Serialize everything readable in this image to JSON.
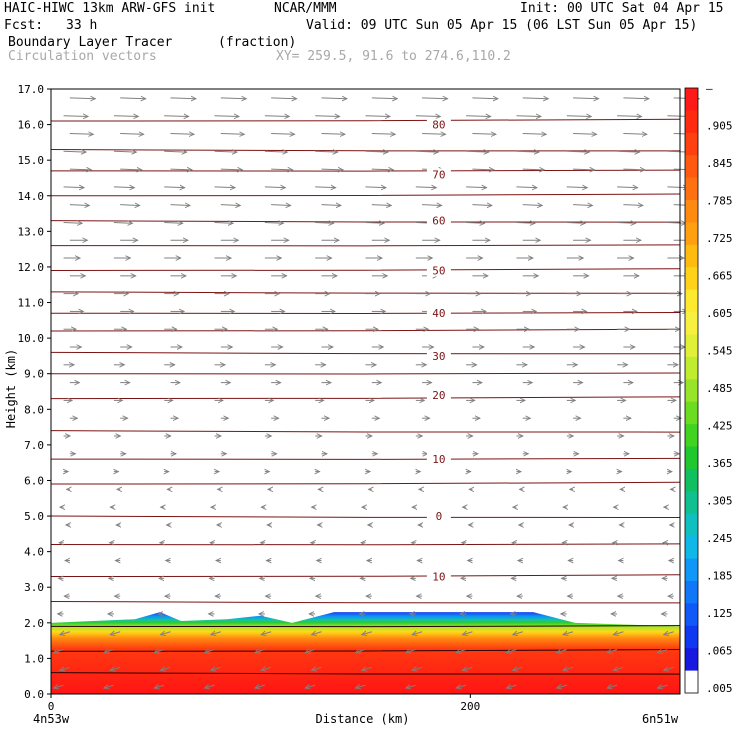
{
  "header": {
    "model": "HAIC-HIWC 13km ARW-GFS init",
    "org": "NCAR/MMM",
    "init": "Init: 00 UTC Sat 04 Apr 15",
    "fcst_label": "Fcst:",
    "fcst_value": "33 h",
    "valid": "Valid: 09 UTC Sun 05 Apr 15 (06 LST Sun 05 Apr 15)",
    "field": "Boundary Layer Tracer",
    "units": "(fraction)",
    "vectors": "Circulation vectors",
    "xy": "XY= 259.5, 91.6 to 274.6,110.2"
  },
  "chart_data": {
    "type": "heatmap",
    "xlabel": "Distance (km)",
    "ylabel": "Height (km)",
    "xlim": [
      0,
      300
    ],
    "ylim": [
      0,
      17
    ],
    "xticks": [
      0,
      200
    ],
    "yticks": [
      "0.0",
      "1.0",
      "2.0",
      "3.0",
      "4.0",
      "5.0",
      "6.0",
      "7.0",
      "8.0",
      "9.0",
      "10.0",
      "11.0",
      "12.0",
      "13.0",
      "14.0",
      "15.0",
      "16.0",
      "17.0"
    ],
    "x_end_labels": [
      "4n53w",
      "6n51w"
    ],
    "colorbar": {
      "labels": [
        "–",
        ".905",
        ".845",
        ".785",
        ".725",
        ".665",
        ".605",
        ".545",
        ".485",
        ".425",
        ".365",
        ".305",
        ".245",
        ".185",
        ".125",
        ".065",
        ".005"
      ],
      "colors": [
        "#ff1a1a",
        "#ff2a10",
        "#ff4010",
        "#ff5a10",
        "#ff7010",
        "#ff8a10",
        "#ffa010",
        "#ffbb10",
        "#ffd21a",
        "#ffe830",
        "#f8f040",
        "#e0f038",
        "#c0ec30",
        "#98e428",
        "#6cdc20",
        "#40d420",
        "#20c830",
        "#10c060",
        "#10c090",
        "#10c0c0",
        "#10b8e8",
        "#1098f8",
        "#1078f8",
        "#1058f8",
        "#1038f0",
        "#1818e0",
        "#ffffff"
      ]
    },
    "contour_labels": [
      {
        "label": "80",
        "x": 185,
        "y": 16.0
      },
      {
        "label": "70",
        "x": 185,
        "y": 14.6
      },
      {
        "label": "60",
        "x": 185,
        "y": 13.3
      },
      {
        "label": "50",
        "x": 185,
        "y": 11.9
      },
      {
        "label": "40",
        "x": 185,
        "y": 10.7
      },
      {
        "label": "30",
        "x": 185,
        "y": 9.5
      },
      {
        "label": "20",
        "x": 185,
        "y": 8.4
      },
      {
        "label": "10",
        "x": 185,
        "y": 6.6
      },
      {
        "label": "0",
        "x": 185,
        "y": 5.0
      },
      {
        "label": "10",
        "x": 185,
        "y": 3.3
      }
    ],
    "contour_levels_km": [
      16.1,
      15.3,
      14.7,
      14.0,
      13.3,
      12.6,
      11.9,
      11.3,
      10.7,
      10.2,
      9.6,
      9.0,
      8.3,
      7.4,
      6.6,
      5.9,
      5.0,
      4.2,
      3.3,
      2.6,
      1.9,
      1.2,
      0.6
    ],
    "tracer_top_km": [
      {
        "x": 0,
        "y": 2.0
      },
      {
        "x": 20,
        "y": 2.05
      },
      {
        "x": 40,
        "y": 2.1
      },
      {
        "x": 52,
        "y": 2.3
      },
      {
        "x": 62,
        "y": 2.05
      },
      {
        "x": 84,
        "y": 2.1
      },
      {
        "x": 100,
        "y": 2.2
      },
      {
        "x": 115,
        "y": 2.0
      },
      {
        "x": 135,
        "y": 2.3
      },
      {
        "x": 230,
        "y": 2.3
      },
      {
        "x": 250,
        "y": 2.0
      },
      {
        "x": 300,
        "y": 1.9
      }
    ],
    "wind": {
      "upper_direction": "east",
      "lower_direction": "west",
      "reversal_height_km": 6.0
    }
  }
}
